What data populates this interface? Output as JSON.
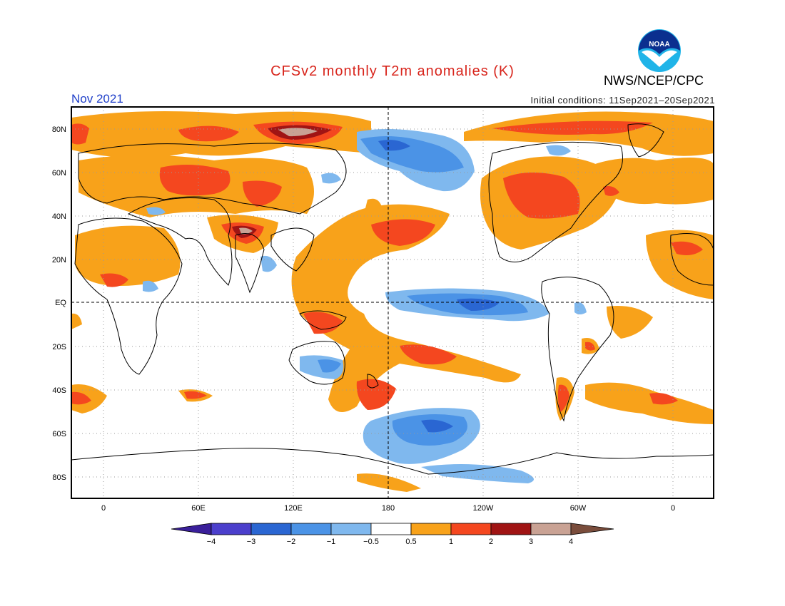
{
  "header": {
    "title": "CFSv2 monthly T2m anomalies (K)",
    "period": "Nov 2021",
    "initial_conditions": "Initial conditions: 11Sep2021–20Sep2021",
    "agency": "NWS/NCEP/CPC",
    "logo_text": "NOAA"
  },
  "map": {
    "lat_labels": [
      "80N",
      "60N",
      "40N",
      "20N",
      "EQ",
      "20S",
      "40S",
      "60S",
      "80S"
    ],
    "lon_labels": [
      "0",
      "60E",
      "120E",
      "180",
      "120W",
      "60W",
      "0"
    ]
  },
  "colorbar": {
    "tick_labels": [
      "−4",
      "−3",
      "−2",
      "−1",
      "−0.5",
      "0.5",
      "1",
      "2",
      "3",
      "4"
    ],
    "colors": [
      "#3a1f9a",
      "#4b3fcc",
      "#2a66d2",
      "#4b93e6",
      "#7fb8ee",
      "#ffffff",
      "#f8a21a",
      "#f4471f",
      "#a01414",
      "#c9a294",
      "#7a4d3c"
    ]
  }
}
